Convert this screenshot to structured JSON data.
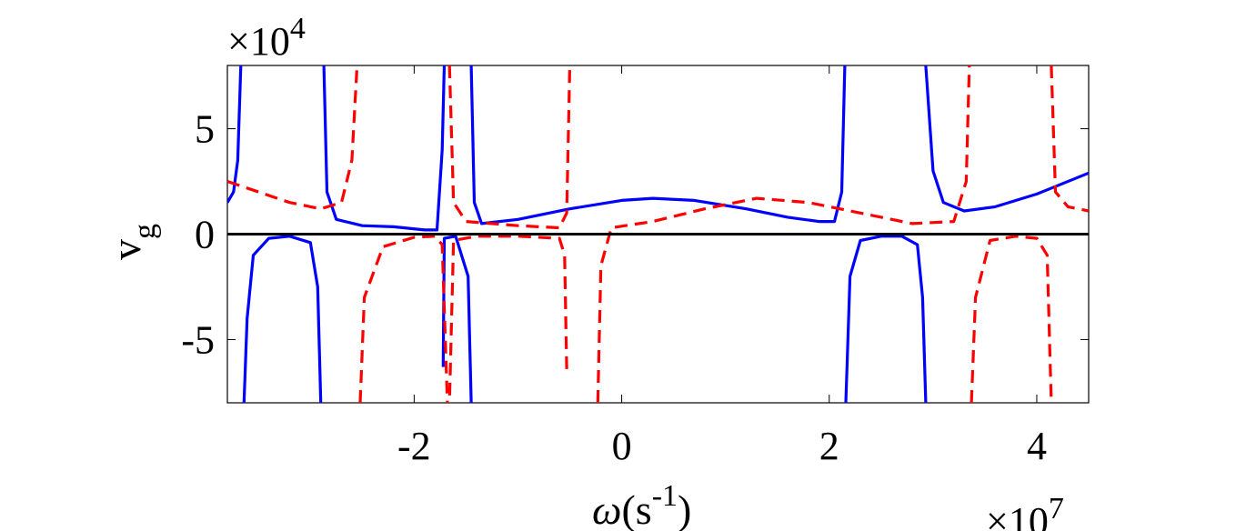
{
  "chart_data": {
    "type": "line",
    "x_multiplier_label": "×10",
    "x_multiplier_exp": "7",
    "y_multiplier_label": "×10",
    "y_multiplier_exp": "4",
    "xlabel": {
      "omega": "ω",
      "open": "(s",
      "sup": "-1",
      "close": ")"
    },
    "ylabel": {
      "v": "v",
      "sub": "g"
    },
    "xlim": [
      -3.8,
      4.5
    ],
    "ylim": [
      -8,
      8
    ],
    "xticks": [
      -2,
      0,
      2,
      4
    ],
    "xtick_labels": [
      "-2",
      "0",
      "2",
      "4"
    ],
    "yticks": [
      -5,
      0,
      5
    ],
    "ytick_labels": [
      "-5",
      "0",
      "5"
    ],
    "zero_line_color": "#000000",
    "series": [
      {
        "style": "solid",
        "color": "#0000ff",
        "segments": [
          [
            [
              -3.8,
              1.5
            ],
            [
              -3.74,
              2.0
            ],
            [
              -3.7,
              3.5
            ],
            [
              -3.67,
              8.0
            ]
          ],
          [
            [
              -3.64,
              -8.0
            ],
            [
              -3.61,
              -4.0
            ],
            [
              -3.55,
              -1.0
            ],
            [
              -3.4,
              -0.2
            ],
            [
              -3.2,
              -0.1
            ],
            [
              -3.0,
              -0.4
            ],
            [
              -2.93,
              -2.5
            ],
            [
              -2.9,
              -8.0
            ]
          ],
          [
            [
              -2.87,
              8.0
            ],
            [
              -2.84,
              2.0
            ],
            [
              -2.75,
              0.7
            ],
            [
              -2.5,
              0.4
            ],
            [
              -2.2,
              0.35
            ],
            [
              -1.9,
              0.2
            ],
            [
              -1.78,
              0.2
            ],
            [
              -1.73,
              4.0
            ],
            [
              -1.71,
              8.0
            ]
          ],
          [
            [
              -1.72,
              -6.3
            ],
            [
              -1.71,
              -0.2
            ],
            [
              -1.6,
              -0.1
            ],
            [
              -1.48,
              -2.0
            ],
            [
              -1.45,
              -8.0
            ]
          ],
          [
            [
              -1.45,
              8.0
            ],
            [
              -1.42,
              1.5
            ],
            [
              -1.35,
              0.5
            ],
            [
              -1.0,
              0.7
            ],
            [
              -0.5,
              1.2
            ],
            [
              0.0,
              1.6
            ],
            [
              0.3,
              1.7
            ],
            [
              0.7,
              1.6
            ],
            [
              1.2,
              1.2
            ],
            [
              1.6,
              0.8
            ],
            [
              1.9,
              0.6
            ],
            [
              2.05,
              0.6
            ],
            [
              2.12,
              2.0
            ],
            [
              2.15,
              8.0
            ]
          ],
          [
            [
              2.16,
              -8.0
            ],
            [
              2.2,
              -2.0
            ],
            [
              2.3,
              -0.3
            ],
            [
              2.5,
              -0.1
            ],
            [
              2.7,
              -0.1
            ],
            [
              2.85,
              -0.5
            ],
            [
              2.9,
              -3.0
            ],
            [
              2.93,
              -8.0
            ]
          ],
          [
            [
              2.93,
              8.0
            ],
            [
              3.0,
              3.0
            ],
            [
              3.1,
              1.5
            ],
            [
              3.3,
              1.1
            ],
            [
              3.6,
              1.3
            ],
            [
              4.0,
              1.9
            ],
            [
              4.5,
              2.9
            ]
          ]
        ]
      },
      {
        "style": "dashed",
        "color": "#ff0000",
        "segments": [
          [
            [
              -3.8,
              2.5
            ],
            [
              -3.5,
              2.0
            ],
            [
              -3.2,
              1.5
            ],
            [
              -2.9,
              1.2
            ],
            [
              -2.7,
              1.5
            ],
            [
              -2.6,
              3.5
            ],
            [
              -2.55,
              8.0
            ]
          ],
          [
            [
              -2.52,
              -8.0
            ],
            [
              -2.48,
              -3.0
            ],
            [
              -2.3,
              -0.6
            ],
            [
              -2.0,
              -0.15
            ],
            [
              -1.8,
              -0.1
            ],
            [
              -1.73,
              -0.5
            ],
            [
              -1.68,
              -8.0
            ]
          ],
          [
            [
              -1.66,
              8.0
            ],
            [
              -1.62,
              1.5
            ],
            [
              -1.5,
              0.6
            ],
            [
              -1.0,
              0.4
            ],
            [
              -0.6,
              0.3
            ],
            [
              -0.53,
              1.0
            ],
            [
              -0.5,
              8.0
            ]
          ],
          [
            [
              -0.53,
              -6.4
            ],
            [
              -0.55,
              -1.0
            ],
            [
              -0.6,
              -0.2
            ],
            [
              -1.0,
              -0.1
            ],
            [
              -1.4,
              -0.1
            ],
            [
              -1.62,
              -0.3
            ],
            [
              -1.66,
              -8.0
            ]
          ],
          [
            [
              -0.23,
              -8.0
            ],
            [
              -0.2,
              -1.5
            ],
            [
              -0.1,
              0.3
            ],
            [
              0.3,
              0.6
            ],
            [
              0.8,
              1.2
            ],
            [
              1.3,
              1.7
            ],
            [
              1.8,
              1.5
            ],
            [
              2.3,
              1.0
            ],
            [
              2.8,
              0.5
            ],
            [
              3.2,
              0.6
            ],
            [
              3.32,
              2.5
            ],
            [
              3.35,
              8.0
            ]
          ],
          [
            [
              3.37,
              -8.0
            ],
            [
              3.41,
              -3.0
            ],
            [
              3.55,
              -0.3
            ],
            [
              3.8,
              -0.1
            ],
            [
              4.0,
              -0.2
            ],
            [
              4.1,
              -1.0
            ],
            [
              4.14,
              -8.0
            ]
          ],
          [
            [
              4.14,
              8.0
            ],
            [
              4.18,
              2.0
            ],
            [
              4.3,
              1.3
            ],
            [
              4.5,
              1.1
            ]
          ]
        ]
      }
    ]
  }
}
